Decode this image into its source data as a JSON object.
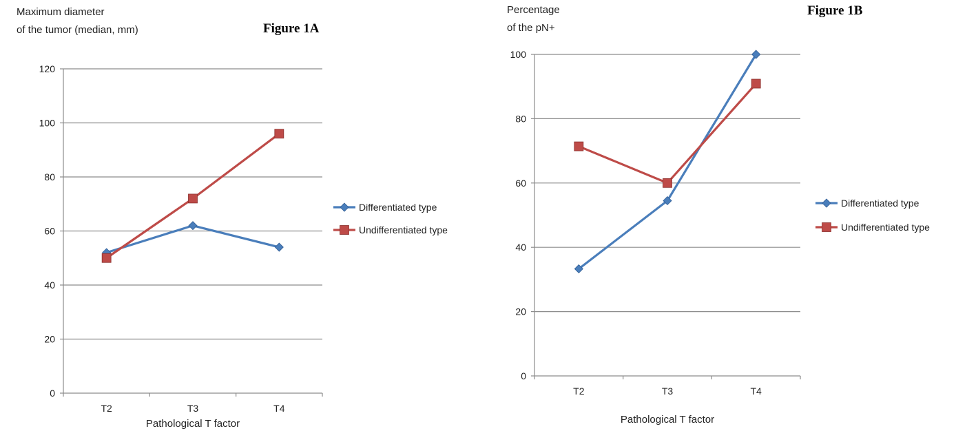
{
  "chart_data": [
    {
      "type": "line",
      "figure_label": "Figure 1A",
      "ylabel_line1": "Maximum diameter",
      "ylabel_line2": "of the tumor (median, mm)",
      "xlabel": "Pathological T factor",
      "categories": [
        "T2",
        "T3",
        "T4"
      ],
      "ylim": [
        0,
        120
      ],
      "yticks": [
        0,
        20,
        40,
        60,
        80,
        100,
        120
      ],
      "grid": true,
      "legend_position": "right",
      "series": [
        {
          "name": "Differentiated type",
          "values": [
            52,
            62,
            54
          ],
          "color": "#4a7ebb",
          "marker": "diamond"
        },
        {
          "name": "Undifferentiated type",
          "values": [
            50,
            72,
            96
          ],
          "color": "#be4b48",
          "marker": "square"
        }
      ]
    },
    {
      "type": "line",
      "figure_label": "Figure 1B",
      "ylabel_line1": "Percentage",
      "ylabel_line2": "of the pN+",
      "xlabel": "Pathological T factor",
      "categories": [
        "T2",
        "T3",
        "T4"
      ],
      "ylim": [
        0,
        100
      ],
      "yticks": [
        0,
        20,
        40,
        60,
        80,
        100
      ],
      "grid": true,
      "legend_position": "right",
      "series": [
        {
          "name": "Differentiated type",
          "values": [
            33.3,
            54.5,
            100
          ],
          "color": "#4a7ebb",
          "marker": "diamond"
        },
        {
          "name": "Undifferentiated type",
          "values": [
            71.4,
            60,
            90.9
          ],
          "color": "#be4b48",
          "marker": "square"
        }
      ]
    }
  ]
}
